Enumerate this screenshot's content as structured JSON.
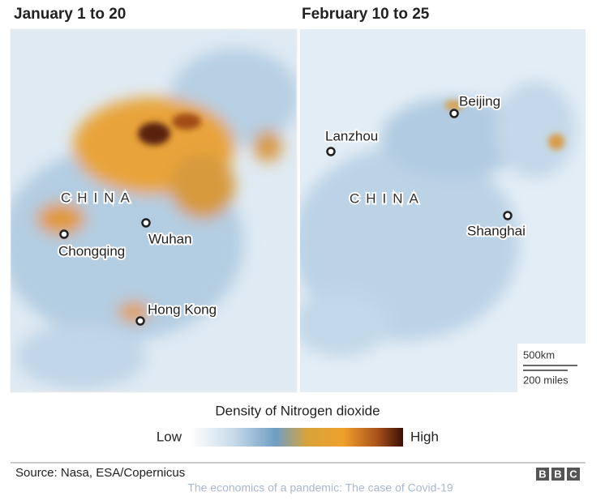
{
  "panels": [
    {
      "title": "January 1 to 20",
      "country": "CHINA",
      "cities": [
        "Chongqing",
        "Wuhan",
        "Hong Kong"
      ]
    },
    {
      "title": "February 10 to 25",
      "country": "CHINA",
      "cities": [
        "Lanzhou",
        "Beijing",
        "Shanghai"
      ]
    }
  ],
  "scale": {
    "metric": "500km",
    "imperial": "200 miles"
  },
  "legend": {
    "title": "Density of Nitrogen dioxide",
    "low": "Low",
    "high": "High"
  },
  "footer": {
    "source": "Source: Nasa, ESA/Copernicus",
    "logo": [
      "B",
      "B",
      "C"
    ],
    "caption": "The economics of a pandemic: The case of Covid-19"
  }
}
